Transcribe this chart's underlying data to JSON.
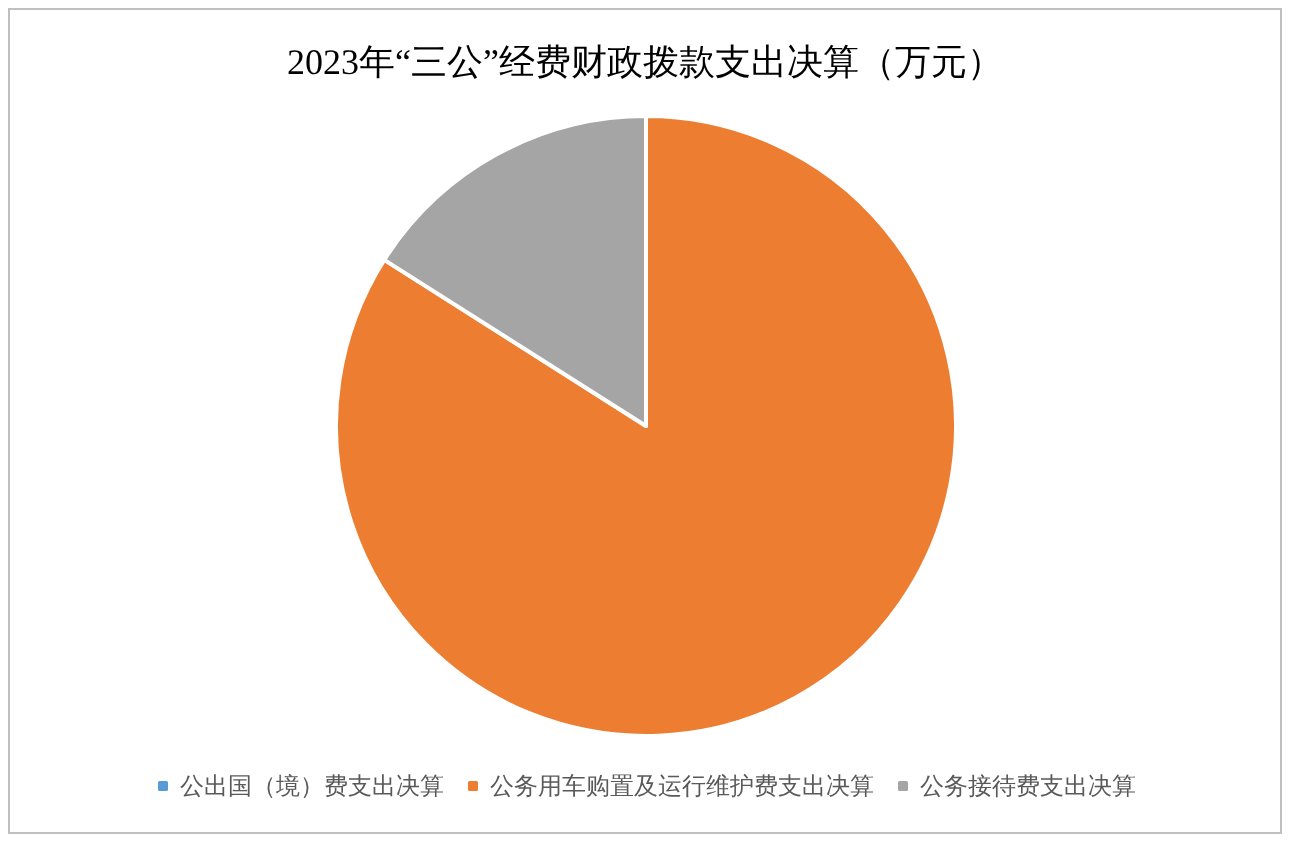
{
  "chart_data": {
    "type": "pie",
    "title": "2023年“三公”经费财政拨款支出决算（万元）",
    "categories": [
      "公出国（境）费支出决算",
      "公务用车购置及运行维护费支出决算",
      "公务接待费支出决算"
    ],
    "values": [
      0,
      84,
      16
    ],
    "colors": [
      "#5b9bd5",
      "#ed7d31",
      "#a5a5a5"
    ],
    "legend": "bottom"
  }
}
